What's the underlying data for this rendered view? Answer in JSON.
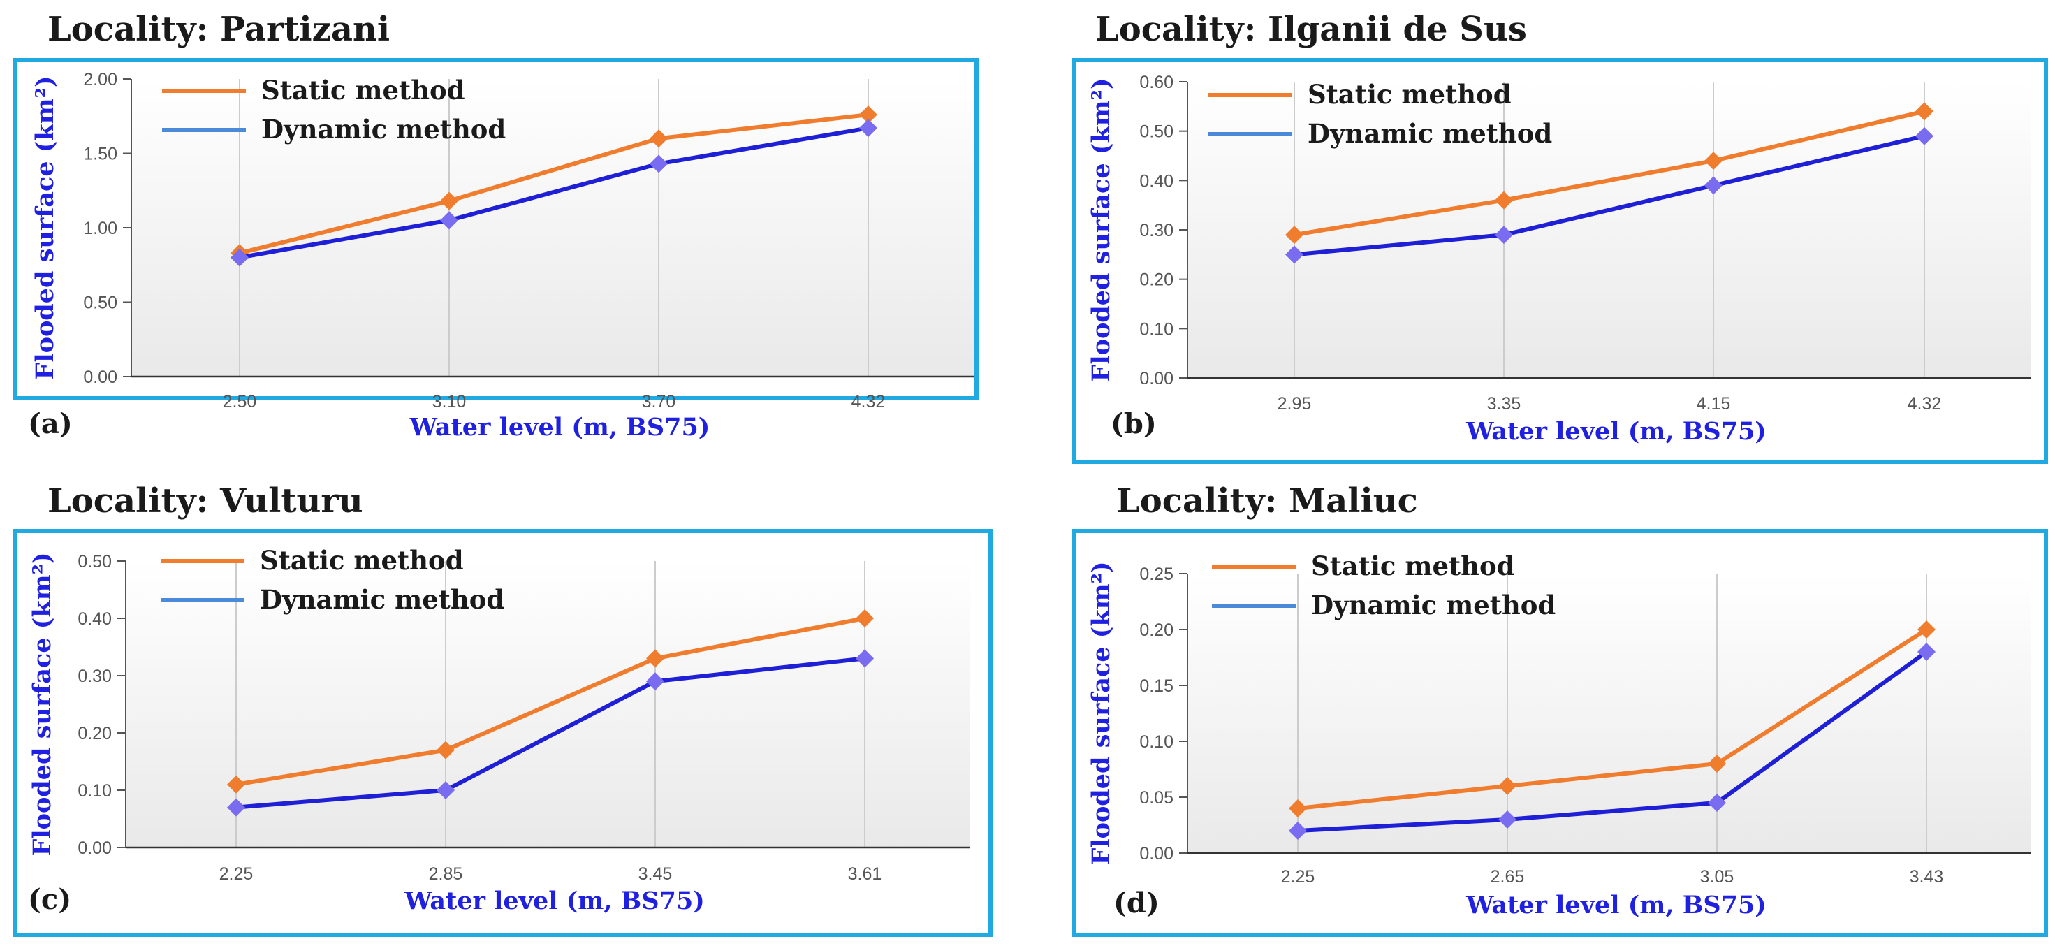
{
  "colors": {
    "frame": "#21a9e1",
    "static": "#f07c2e",
    "dynamic": "#1f1fd6",
    "dynamic_marker": "#7a6cf0",
    "dynamic_legend": "#4a8ad8",
    "grid": "#cccccc",
    "axis_label": "#2020e0"
  },
  "chart_data": [
    {
      "type": "line",
      "title": "Locality: Partizani",
      "panel": "(a)",
      "xlabel": "Water level (m, BS75)",
      "ylabel": "Flooded surface (km²)",
      "categories": [
        "2.50",
        "3.10",
        "3.70",
        "4.32"
      ],
      "ylim": [
        0,
        2.0
      ],
      "yticks": [
        "0.00",
        "0.50",
        "1.00",
        "1.50",
        "2.00"
      ],
      "series": [
        {
          "name": "Static method",
          "values": [
            0.83,
            1.18,
            1.6,
            1.76
          ]
        },
        {
          "name": "Dynamic method",
          "values": [
            0.8,
            1.05,
            1.43,
            1.67
          ]
        }
      ]
    },
    {
      "type": "line",
      "title": "Locality: Ilganii de Sus",
      "panel": "(b)",
      "xlabel": "Water level (m, BS75)",
      "ylabel": "Flooded surface (km²)",
      "categories": [
        "2.95",
        "3.35",
        "4.15",
        "4.32"
      ],
      "ylim": [
        0,
        0.6
      ],
      "yticks": [
        "0.00",
        "0.10",
        "0.20",
        "0.30",
        "0.40",
        "0.50",
        "0.60"
      ],
      "series": [
        {
          "name": "Static method",
          "values": [
            0.29,
            0.36,
            0.44,
            0.54
          ]
        },
        {
          "name": "Dynamic method",
          "values": [
            0.25,
            0.29,
            0.39,
            0.49
          ]
        }
      ]
    },
    {
      "type": "line",
      "title": "Locality: Vulturu",
      "panel": "(c)",
      "xlabel": "Water level (m, BS75)",
      "ylabel": "Flooded surface (km²)",
      "categories": [
        "2.25",
        "2.85",
        "3.45",
        "3.61"
      ],
      "ylim": [
        0,
        0.5
      ],
      "yticks": [
        "0.00",
        "0.10",
        "0.20",
        "0.30",
        "0.40",
        "0.50"
      ],
      "series": [
        {
          "name": "Static method",
          "values": [
            0.11,
            0.17,
            0.33,
            0.4
          ]
        },
        {
          "name": "Dynamic method",
          "values": [
            0.07,
            0.1,
            0.29,
            0.33
          ]
        }
      ]
    },
    {
      "type": "line",
      "title": "Locality: Maliuc",
      "panel": "(d)",
      "xlabel": "Water level (m, BS75)",
      "ylabel": "Flooded surface (km²)",
      "categories": [
        "2.25",
        "2.65",
        "3.05",
        "3.43"
      ],
      "ylim": [
        0,
        0.25
      ],
      "yticks": [
        "0.00",
        "0.05",
        "0.10",
        "0.15",
        "0.20",
        "0.25"
      ],
      "series": [
        {
          "name": "Static method",
          "values": [
            0.04,
            0.06,
            0.08,
            0.2
          ]
        },
        {
          "name": "Dynamic method",
          "values": [
            0.02,
            0.03,
            0.045,
            0.18
          ]
        }
      ]
    }
  ]
}
